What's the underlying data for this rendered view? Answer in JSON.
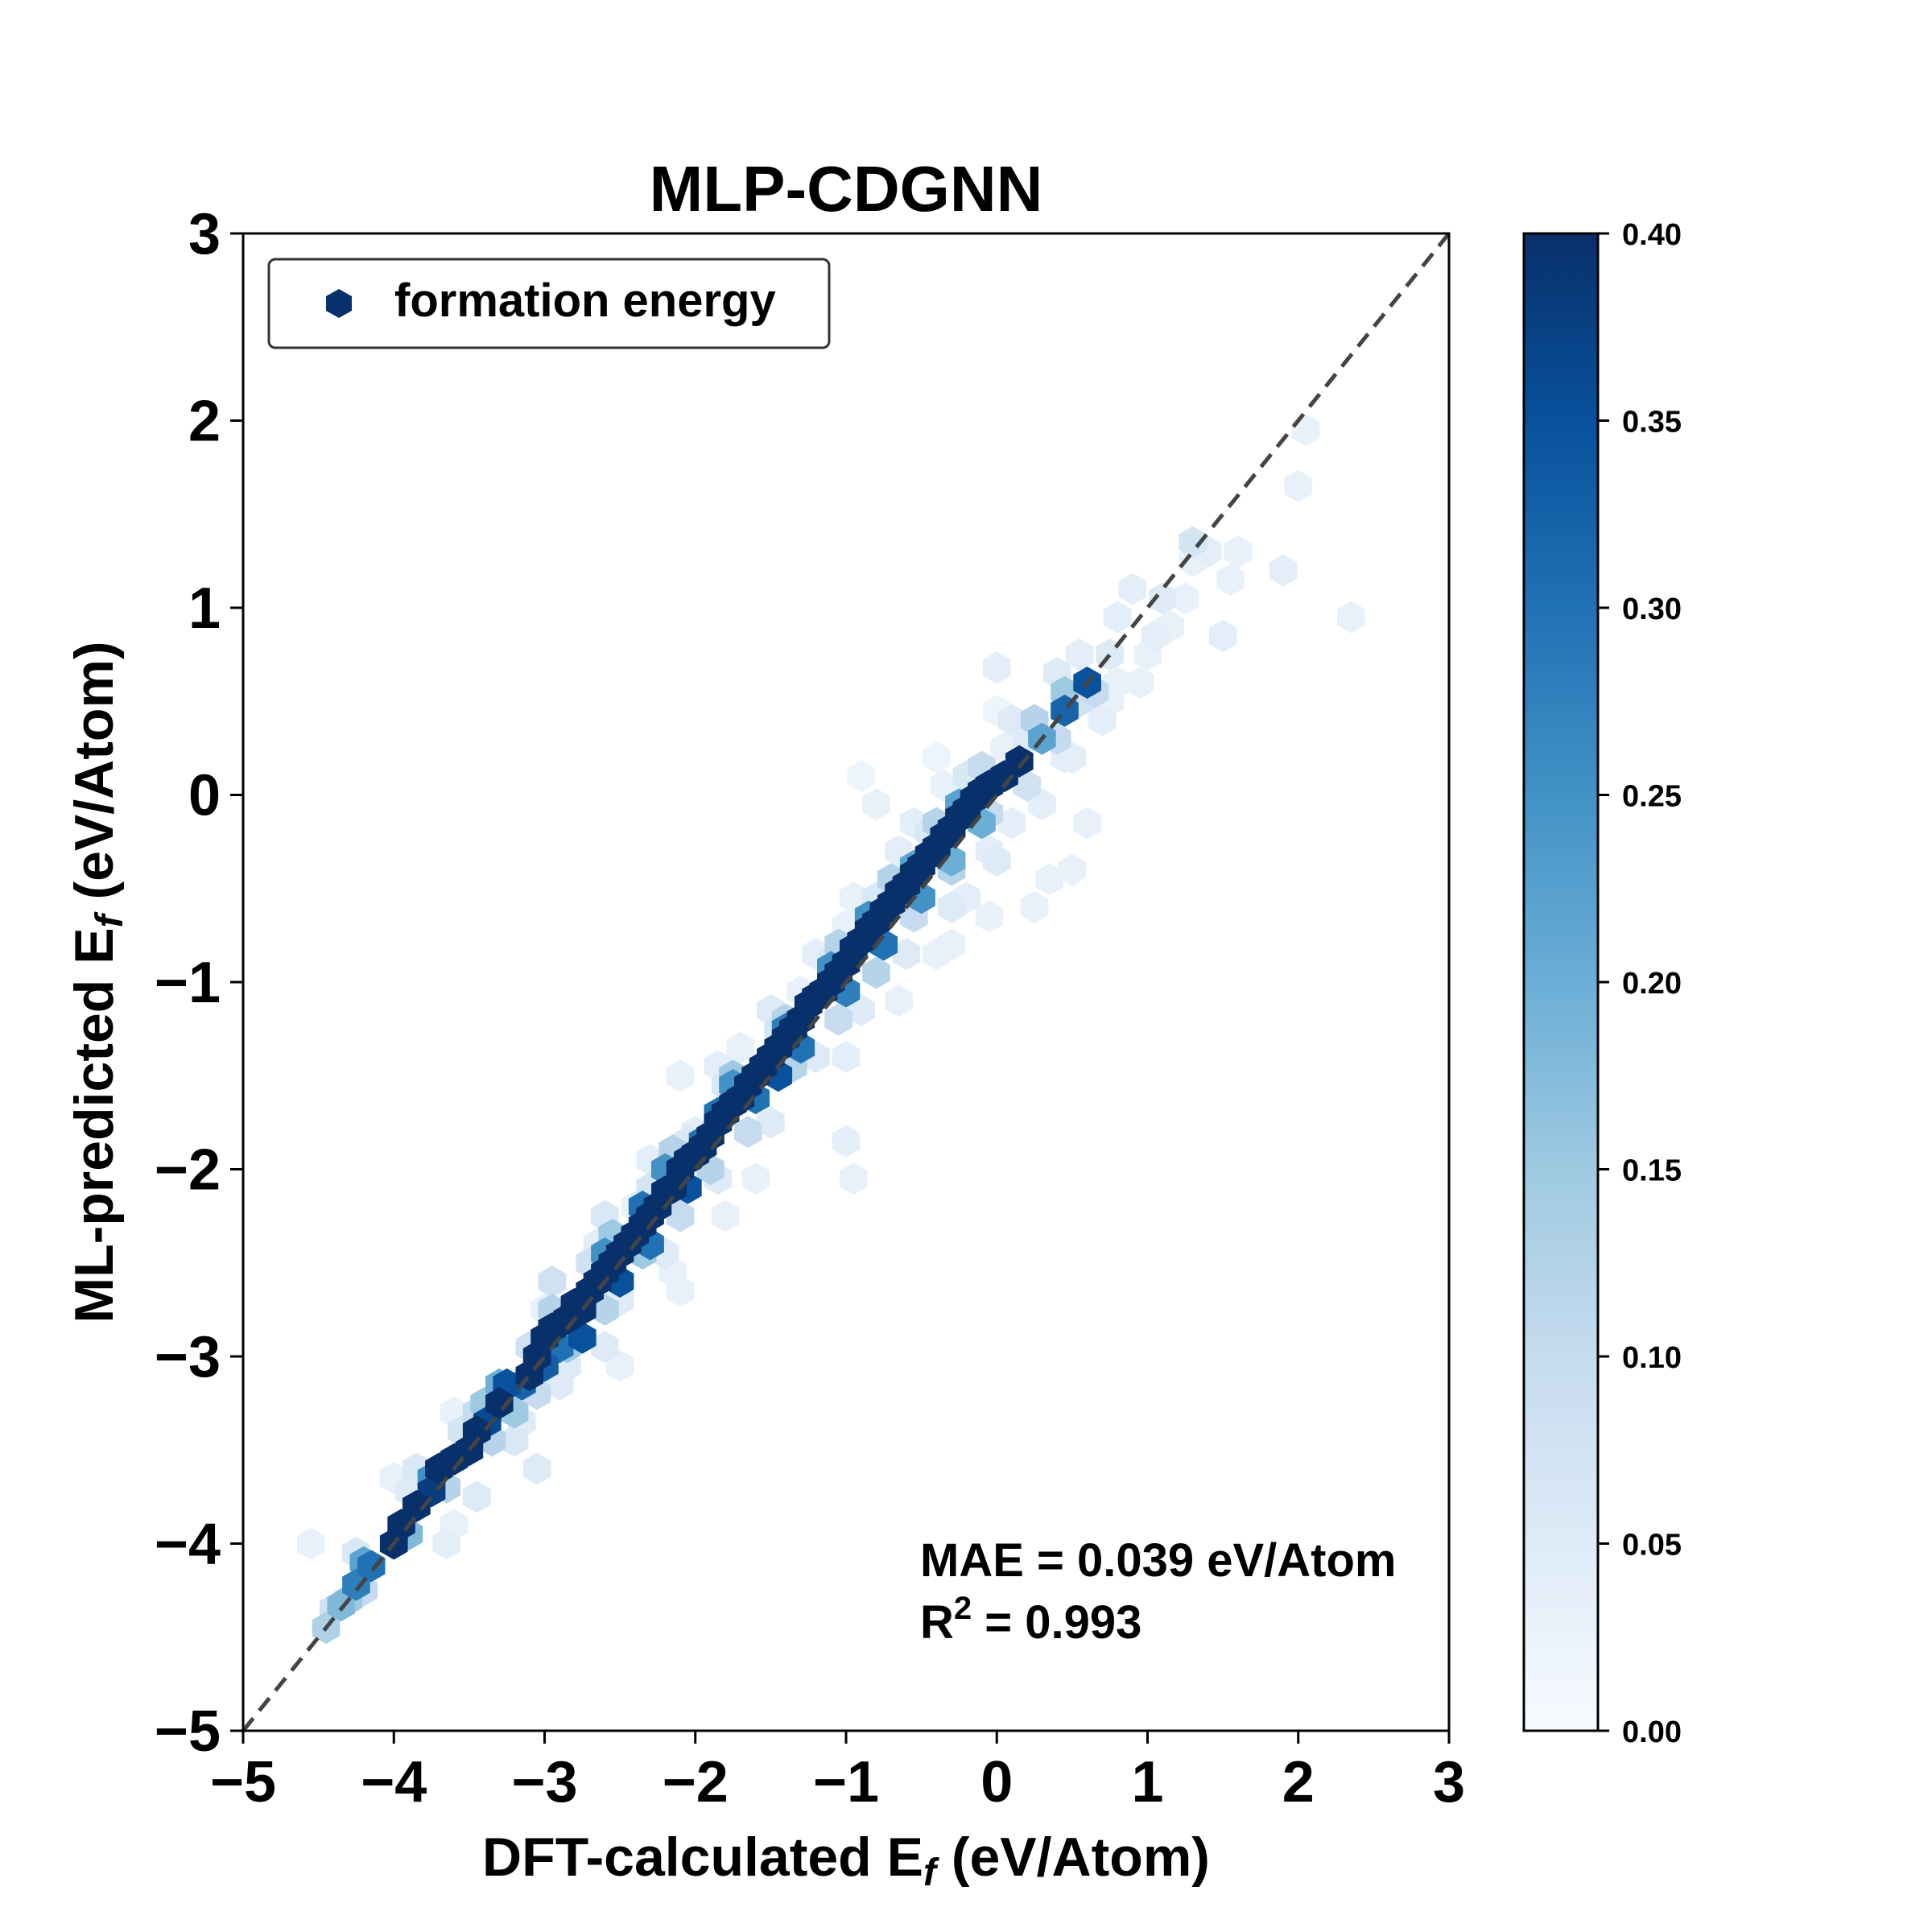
{
  "chart_data": {
    "type": "scatter",
    "subtype": "hexbin-density",
    "title": "MLP-CDGNN",
    "xlabel_pre": "DFT-calculated E",
    "xlabel_sub": "f",
    "xlabel_post": " (eV/Atom)",
    "ylabel_pre": "ML-predicted E",
    "ylabel_sub": "f",
    "ylabel_post": " (eV/Atom)",
    "xlim": [
      -5,
      3
    ],
    "ylim": [
      -5,
      3
    ],
    "xticks": [
      "−5",
      "−4",
      "−3",
      "−2",
      "−1",
      "0",
      "1",
      "2",
      "3"
    ],
    "yticks": [
      "−5",
      "−4",
      "−3",
      "−2",
      "−1",
      "0",
      "1",
      "2",
      "3"
    ],
    "tick_values": [
      -5,
      -4,
      -3,
      -2,
      -1,
      0,
      1,
      2,
      3
    ],
    "legend": {
      "label": "formation energy",
      "placement": "top-left"
    },
    "parity_line": {
      "from": [
        -5,
        -5
      ],
      "to": [
        3,
        3
      ],
      "style": "dashed",
      "color": "#444444"
    },
    "annotation": {
      "mae": "MAE = 0.039 eV/Atom",
      "r2_pre": "R",
      "r2_sup": "2",
      "r2_post": " = 0.993"
    },
    "colorbar": {
      "ticks": [
        "0.00",
        "0.05",
        "0.10",
        "0.15",
        "0.20",
        "0.25",
        "0.30",
        "0.35",
        "0.40"
      ],
      "tick_values": [
        0,
        0.05,
        0.1,
        0.15,
        0.2,
        0.25,
        0.3,
        0.35,
        0.4
      ],
      "range": [
        0,
        0.4
      ],
      "colormap": "Blues",
      "color_min": "#f7fbff",
      "color_max": "#08306b"
    },
    "points": [
      [
        -4.45,
        -4.45,
        0.13
      ],
      [
        -4.35,
        -4.33,
        0.18
      ],
      [
        -4.25,
        -4.22,
        0.28
      ],
      [
        -4.15,
        -4.12,
        0.3
      ],
      [
        -4.55,
        -4.0,
        0.03
      ],
      [
        -4.0,
        -4.0,
        0.4
      ],
      [
        -3.95,
        -3.9,
        0.4
      ],
      [
        -3.9,
        -3.72,
        0.05
      ],
      [
        -3.85,
        -3.8,
        0.4
      ],
      [
        -3.75,
        -3.72,
        0.38
      ],
      [
        -3.7,
        -3.6,
        0.4
      ],
      [
        -3.6,
        -3.55,
        0.4
      ],
      [
        -3.5,
        -3.5,
        0.4
      ],
      [
        -3.45,
        -3.4,
        0.4
      ],
      [
        -3.38,
        -3.35,
        0.36
      ],
      [
        -3.3,
        -3.25,
        0.4
      ],
      [
        -3.25,
        -3.15,
        0.35
      ],
      [
        -3.2,
        -3.3,
        0.15
      ],
      [
        -3.1,
        -3.1,
        0.4
      ],
      [
        -3.05,
        -3.0,
        0.4
      ],
      [
        -3.0,
        -2.9,
        0.4
      ],
      [
        -2.95,
        -2.85,
        0.4
      ],
      [
        -2.9,
        -2.95,
        0.3
      ],
      [
        -2.85,
        -2.8,
        0.4
      ],
      [
        -2.8,
        -2.72,
        0.4
      ],
      [
        -2.75,
        -2.75,
        0.4
      ],
      [
        -2.7,
        -2.65,
        0.4
      ],
      [
        -2.65,
        -2.6,
        0.4
      ],
      [
        -2.6,
        -2.55,
        0.4
      ],
      [
        -2.55,
        -2.5,
        0.4
      ],
      [
        -2.5,
        -2.45,
        0.4
      ],
      [
        -2.45,
        -2.4,
        0.4
      ],
      [
        -2.4,
        -2.35,
        0.4
      ],
      [
        -2.35,
        -2.3,
        0.4
      ],
      [
        -2.3,
        -2.25,
        0.4
      ],
      [
        -2.25,
        -2.2,
        0.4
      ],
      [
        -2.2,
        -2.12,
        0.4
      ],
      [
        -2.15,
        -2.1,
        0.4
      ],
      [
        -2.1,
        -2.0,
        0.4
      ],
      [
        -2.05,
        -1.95,
        0.4
      ],
      [
        -2.0,
        -1.92,
        0.4
      ],
      [
        -1.95,
        -1.88,
        0.4
      ],
      [
        -1.9,
        -1.82,
        0.4
      ],
      [
        -1.85,
        -1.75,
        0.4
      ],
      [
        -1.8,
        -1.7,
        0.4
      ],
      [
        -1.75,
        -1.65,
        0.4
      ],
      [
        -1.7,
        -1.62,
        0.4
      ],
      [
        -1.65,
        -1.55,
        0.4
      ],
      [
        -1.6,
        -1.5,
        0.4
      ],
      [
        -1.55,
        -1.45,
        0.4
      ],
      [
        -1.5,
        -1.4,
        0.4
      ],
      [
        -1.45,
        -1.35,
        0.4
      ],
      [
        -1.4,
        -1.3,
        0.4
      ],
      [
        -1.35,
        -1.25,
        0.4
      ],
      [
        -1.3,
        -1.2,
        0.4
      ],
      [
        -1.25,
        -1.12,
        0.4
      ],
      [
        -1.2,
        -1.08,
        0.4
      ],
      [
        -1.15,
        -1.05,
        0.4
      ],
      [
        -1.1,
        -1.0,
        0.4
      ],
      [
        -1.05,
        -0.95,
        0.4
      ],
      [
        -1.0,
        -0.9,
        0.4
      ],
      [
        -0.95,
        -0.82,
        0.4
      ],
      [
        -0.9,
        -0.78,
        0.4
      ],
      [
        -0.85,
        -0.72,
        0.4
      ],
      [
        -0.8,
        -0.68,
        0.4
      ],
      [
        -0.75,
        -0.62,
        0.4
      ],
      [
        -0.7,
        -0.58,
        0.4
      ],
      [
        -0.65,
        -0.52,
        0.4
      ],
      [
        -0.6,
        -0.48,
        0.4
      ],
      [
        -0.55,
        -0.42,
        0.4
      ],
      [
        -0.5,
        -0.38,
        0.4
      ],
      [
        -0.45,
        -0.32,
        0.4
      ],
      [
        -0.4,
        -0.28,
        0.4
      ],
      [
        -0.35,
        -0.22,
        0.4
      ],
      [
        -0.3,
        -0.18,
        0.4
      ],
      [
        -0.25,
        -0.12,
        0.4
      ],
      [
        -0.2,
        -0.08,
        0.4
      ],
      [
        -0.15,
        -0.02,
        0.4
      ],
      [
        -0.1,
        0.02,
        0.4
      ],
      [
        -0.05,
        0.05,
        0.4
      ],
      [
        0.05,
        0.1,
        0.4
      ],
      [
        0.15,
        0.18,
        0.4
      ],
      [
        0.3,
        0.3,
        0.22
      ],
      [
        0.45,
        0.45,
        0.32
      ],
      [
        0.6,
        0.6,
        0.35
      ],
      [
        0.65,
        0.55,
        0.1
      ],
      [
        -2.75,
        -2.9,
        0.35
      ],
      [
        -3.0,
        -3.05,
        0.33
      ],
      [
        -3.15,
        -3.15,
        0.32
      ],
      [
        -3.75,
        -3.65,
        0.25
      ],
      [
        -2.5,
        -2.6,
        0.35
      ],
      [
        -2.3,
        -2.4,
        0.3
      ],
      [
        -2.05,
        -2.1,
        0.35
      ],
      [
        -1.95,
        -1.85,
        0.3
      ],
      [
        -1.6,
        -1.62,
        0.3
      ],
      [
        -1.45,
        -1.5,
        0.35
      ],
      [
        -1.3,
        -1.35,
        0.3
      ],
      [
        -1.0,
        -1.05,
        0.28
      ],
      [
        -0.75,
        -0.8,
        0.3
      ],
      [
        -0.5,
        -0.55,
        0.25
      ],
      [
        -0.3,
        -0.35,
        0.2
      ],
      [
        -0.1,
        -0.15,
        0.2
      ],
      [
        -2.2,
        -2.0,
        0.25
      ],
      [
        -1.85,
        -1.7,
        0.3
      ],
      [
        -1.4,
        -1.25,
        0.28
      ],
      [
        -1.1,
        -0.92,
        0.25
      ],
      [
        -0.85,
        -0.65,
        0.25
      ],
      [
        -0.55,
        -0.38,
        0.22
      ],
      [
        -0.25,
        -0.05,
        0.22
      ],
      [
        -2.6,
        -2.45,
        0.25
      ],
      [
        -3.3,
        -3.15,
        0.2
      ],
      [
        -4.2,
        -4.1,
        0.22
      ],
      [
        -2.35,
        -2.2,
        0.3
      ],
      [
        -1.75,
        -1.55,
        0.25
      ],
      [
        -4.4,
        -4.35,
        0.08
      ],
      [
        -3.45,
        -3.3,
        0.1
      ],
      [
        -3.1,
        -2.95,
        0.08
      ],
      [
        -2.7,
        -2.5,
        0.08
      ],
      [
        -2.3,
        -2.1,
        0.07
      ],
      [
        -2.05,
        -1.85,
        0.06
      ],
      [
        -1.8,
        -1.55,
        0.06
      ],
      [
        -1.45,
        -1.25,
        0.07
      ],
      [
        -1.1,
        -0.88,
        0.06
      ],
      [
        -0.8,
        -0.55,
        0.06
      ],
      [
        -0.45,
        -0.2,
        0.06
      ],
      [
        -0.2,
        0.1,
        0.06
      ],
      [
        0.2,
        0.3,
        0.05
      ],
      [
        0.4,
        0.65,
        0.05
      ],
      [
        0.55,
        0.75,
        0.04
      ],
      [
        0.8,
        0.95,
        0.04
      ],
      [
        -3.2,
        -3.45,
        0.06
      ],
      [
        -2.9,
        -3.15,
        0.05
      ],
      [
        -2.5,
        -2.7,
        0.05
      ],
      [
        -2.2,
        -2.45,
        0.05
      ],
      [
        -1.85,
        -2.05,
        0.05
      ],
      [
        -1.5,
        -1.75,
        0.05
      ],
      [
        -1.2,
        -1.4,
        0.05
      ],
      [
        -0.9,
        -1.15,
        0.05
      ],
      [
        -0.6,
        -0.85,
        0.05
      ],
      [
        -0.3,
        -0.6,
        0.05
      ],
      [
        0.0,
        -0.35,
        0.05
      ],
      [
        0.3,
        -0.05,
        0.04
      ],
      [
        0.5,
        0.2,
        0.04
      ],
      [
        0.7,
        0.4,
        0.04
      ],
      [
        0.8,
        0.6,
        0.03
      ],
      [
        1.0,
        0.75,
        0.03
      ],
      [
        -2.1,
        -1.5,
        0.03
      ],
      [
        -2.0,
        -1.8,
        0.04
      ],
      [
        -1.7,
        -1.35,
        0.03
      ],
      [
        -2.4,
        -2.2,
        0.03
      ],
      [
        -2.65,
        -2.4,
        0.04
      ],
      [
        -3.0,
        -2.75,
        0.03
      ],
      [
        -0.65,
        -0.3,
        0.04
      ],
      [
        -1.0,
        -0.7,
        0.03
      ],
      [
        -4.0,
        -3.65,
        0.03
      ],
      [
        -3.6,
        -3.3,
        0.03
      ],
      [
        -1.3,
        -1.05,
        0.03
      ],
      [
        0.05,
        0.25,
        0.03
      ],
      [
        -0.8,
        -0.05,
        0.03
      ],
      [
        -0.9,
        0.1,
        0.02
      ],
      [
        -0.4,
        0.2,
        0.02
      ],
      [
        0.0,
        0.68,
        0.04
      ],
      [
        0.0,
        0.45,
        0.02
      ],
      [
        0.55,
        0.5,
        0.08
      ],
      [
        0.75,
        0.5,
        0.03
      ],
      [
        0.95,
        0.6,
        0.03
      ],
      [
        0.9,
        1.1,
        0.04
      ],
      [
        1.1,
        1.05,
        0.05
      ],
      [
        1.05,
        0.85,
        0.04
      ],
      [
        1.15,
        0.9,
        0.03
      ],
      [
        1.25,
        1.05,
        0.03
      ],
      [
        1.3,
        1.25,
        0.03
      ],
      [
        1.4,
        1.3,
        0.04
      ],
      [
        1.55,
        1.15,
        0.03
      ],
      [
        1.6,
        1.3,
        0.03
      ],
      [
        1.5,
        0.85,
        0.04
      ],
      [
        1.9,
        1.2,
        0.04
      ],
      [
        2.05,
        1.95,
        0.03
      ],
      [
        2.0,
        1.65,
        0.03
      ],
      [
        2.35,
        0.95,
        0.03
      ],
      [
        1.3,
        1.35,
        0.07
      ],
      [
        0.75,
        0.75,
        0.05
      ],
      [
        0.45,
        0.2,
        0.04
      ],
      [
        0.6,
        -0.15,
        0.03
      ],
      [
        0.5,
        -0.4,
        0.03
      ],
      [
        0.35,
        -0.45,
        0.03
      ],
      [
        0.25,
        -0.6,
        0.03
      ],
      [
        0.1,
        -0.15,
        0.04
      ],
      [
        -0.05,
        -0.3,
        0.04
      ],
      [
        -0.2,
        -0.55,
        0.04
      ],
      [
        -0.4,
        -0.85,
        0.03
      ],
      [
        -0.05,
        -0.65,
        0.03
      ],
      [
        -0.3,
        -0.8,
        0.03
      ],
      [
        -0.65,
        -1.1,
        0.03
      ],
      [
        -1.0,
        -1.4,
        0.04
      ],
      [
        -1.6,
        -2.05,
        0.03
      ],
      [
        -1.0,
        -1.85,
        0.04
      ],
      [
        -0.95,
        -2.05,
        0.03
      ],
      [
        -2.15,
        -2.55,
        0.03
      ],
      [
        -2.1,
        -2.65,
        0.03
      ],
      [
        -1.8,
        -2.25,
        0.03
      ],
      [
        -2.5,
        -3.05,
        0.03
      ],
      [
        -2.6,
        -2.95,
        0.05
      ],
      [
        -2.85,
        -3.05,
        0.05
      ],
      [
        -3.15,
        -3.35,
        0.05
      ],
      [
        -3.05,
        -3.6,
        0.05
      ],
      [
        -3.45,
        -3.75,
        0.05
      ],
      [
        -3.65,
        -4.0,
        0.04
      ],
      [
        -3.6,
        -3.9,
        0.03
      ],
      [
        -2.95,
        -2.6,
        0.08
      ],
      [
        -2.6,
        -2.25,
        0.06
      ],
      [
        -2.3,
        -1.95,
        0.04
      ],
      [
        -1.85,
        -1.45,
        0.04
      ],
      [
        -1.5,
        -1.15,
        0.05
      ],
      [
        -1.2,
        -0.85,
        0.04
      ],
      [
        -0.95,
        -0.55,
        0.03
      ],
      [
        -0.55,
        -0.15,
        0.04
      ],
      [
        -0.35,
        0.05,
        0.03
      ],
      [
        0.1,
        0.4,
        0.05
      ],
      [
        -4.25,
        -4.05,
        0.06
      ],
      [
        -3.85,
        -3.6,
        0.06
      ],
      [
        -3.55,
        -3.4,
        0.07
      ],
      [
        -4.3,
        -4.3,
        0.15
      ],
      [
        -4.2,
        -4.25,
        0.1
      ],
      [
        -3.9,
        -3.95,
        0.18
      ],
      [
        -3.65,
        -3.7,
        0.12
      ],
      [
        -3.35,
        -3.45,
        0.12
      ],
      [
        -3.05,
        -3.2,
        0.1
      ],
      [
        -2.85,
        -2.95,
        0.15
      ],
      [
        -2.6,
        -2.75,
        0.12
      ],
      [
        -2.35,
        -2.45,
        0.15
      ],
      [
        -2.1,
        -2.25,
        0.1
      ],
      [
        -1.9,
        -2.0,
        0.12
      ],
      [
        -1.65,
        -1.8,
        0.1
      ],
      [
        -1.35,
        -1.45,
        0.12
      ],
      [
        -1.05,
        -1.2,
        0.1
      ],
      [
        -0.8,
        -0.95,
        0.12
      ],
      [
        -0.55,
        -0.65,
        0.1
      ],
      [
        -0.3,
        -0.4,
        0.12
      ],
      [
        -0.05,
        -0.1,
        0.1
      ],
      [
        0.2,
        0.05,
        0.08
      ],
      [
        0.4,
        0.3,
        0.1
      ],
      [
        -3.4,
        -3.25,
        0.15
      ],
      [
        -2.95,
        -2.75,
        0.12
      ],
      [
        -2.55,
        -2.35,
        0.15
      ],
      [
        -2.15,
        -1.9,
        0.12
      ],
      [
        -1.75,
        -1.5,
        0.15
      ],
      [
        -1.4,
        -1.2,
        0.12
      ],
      [
        -1.05,
        -0.8,
        0.12
      ],
      [
        -0.7,
        -0.45,
        0.12
      ],
      [
        -0.4,
        -0.15,
        0.12
      ],
      [
        -0.1,
        0.15,
        0.1
      ],
      [
        0.25,
        0.4,
        0.12
      ],
      [
        0.45,
        0.55,
        0.15
      ]
    ]
  }
}
